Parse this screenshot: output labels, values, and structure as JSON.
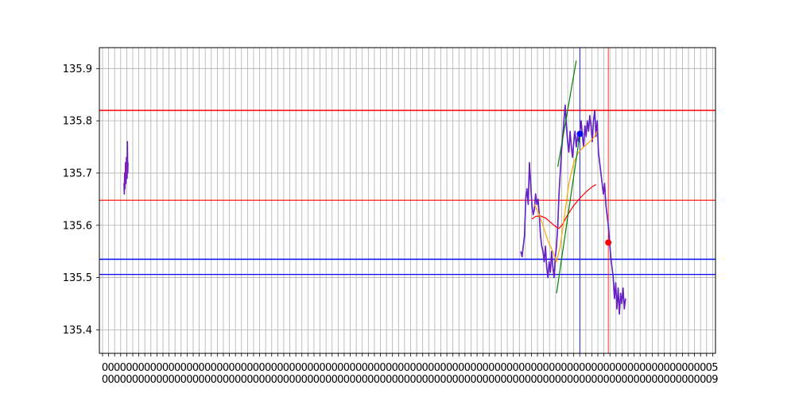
{
  "chart_data": {
    "type": "line",
    "title": "",
    "xlabel": "",
    "ylabel": "",
    "grid": true,
    "legend": "none",
    "xlim": [
      0,
      100
    ],
    "ylim": [
      135.355,
      135.94
    ],
    "yticks": [
      "135.4",
      "135.5",
      "135.6",
      "135.7",
      "135.8",
      "135.9"
    ],
    "ytick_values": [
      135.4,
      135.5,
      135.6,
      135.7,
      135.8,
      135.9
    ],
    "x_tick_count": 102,
    "xtick_row1": "0",
    "xtick_row2": "0",
    "xtick_end_row1": "5",
    "xtick_end_row2": "9",
    "colors": {
      "price": "#8a1ab3",
      "price_wick": "#2222dd",
      "level_red": "#ff0000",
      "level_blue": "#0000ff",
      "trend_green": "#008000",
      "ma_orange": "#ffa500",
      "ma_red": "#ff0000",
      "grid": "#b0b0b0"
    },
    "hlines": [
      {
        "y": 135.82,
        "color": "#ff0000",
        "width": 1.5
      },
      {
        "y": 135.648,
        "color": "#ff0000",
        "width": 1.2
      },
      {
        "y": 135.535,
        "color": "#0000ff",
        "width": 1.5
      },
      {
        "y": 135.506,
        "color": "#0000ff",
        "width": 1.2
      }
    ],
    "vlines": [
      {
        "x": 78.0,
        "color": "#0000ff"
      },
      {
        "x": 82.6,
        "color": "#ff0000"
      }
    ],
    "markers": [
      {
        "x": 78.0,
        "y": 135.775,
        "color": "#0000ff"
      },
      {
        "x": 82.6,
        "y": 135.567,
        "color": "#ff0000"
      }
    ],
    "trendlines": [
      {
        "color": "#008000",
        "points": [
          [
            74.4,
            135.712
          ],
          [
            77.4,
            135.915
          ]
        ]
      },
      {
        "color": "#008000",
        "points": [
          [
            74.2,
            135.47
          ],
          [
            78.0,
            135.775
          ]
        ]
      }
    ],
    "ma_orange": [
      [
        70.6,
        135.64
      ],
      [
        71.4,
        135.62
      ],
      [
        72.0,
        135.6
      ],
      [
        72.8,
        135.57
      ],
      [
        73.6,
        135.55
      ],
      [
        74.2,
        135.53
      ],
      [
        74.8,
        135.56
      ],
      [
        75.4,
        135.61
      ],
      [
        76.2,
        135.68
      ],
      [
        77.0,
        135.72
      ],
      [
        77.8,
        135.74
      ],
      [
        78.6,
        135.75
      ],
      [
        79.6,
        135.76
      ],
      [
        80.4,
        135.77
      ],
      [
        80.8,
        135.78
      ]
    ],
    "ma_red": [
      [
        70.2,
        135.612
      ],
      [
        70.8,
        135.617
      ],
      [
        71.6,
        135.618
      ],
      [
        72.4,
        135.614
      ],
      [
        73.2,
        135.606
      ],
      [
        74.0,
        135.598
      ],
      [
        74.6,
        135.594
      ],
      [
        75.2,
        135.602
      ],
      [
        76.0,
        135.62
      ],
      [
        77.0,
        135.638
      ],
      [
        78.0,
        135.652
      ],
      [
        79.0,
        135.664
      ],
      [
        80.0,
        135.674
      ],
      [
        80.6,
        135.678
      ]
    ],
    "price_series": [
      [
        4.0,
        135.68
      ],
      [
        4.05,
        135.66
      ],
      [
        4.1,
        135.7
      ],
      [
        4.15,
        135.67
      ],
      [
        4.2,
        135.69
      ],
      [
        4.25,
        135.72
      ],
      [
        4.3,
        135.68
      ],
      [
        4.35,
        135.7
      ],
      [
        4.4,
        135.73
      ],
      [
        4.45,
        135.71
      ],
      [
        4.5,
        135.69
      ],
      [
        4.55,
        135.76
      ],
      [
        4.6,
        135.7
      ],
      [
        4.65,
        135.72
      ],
      null,
      [
        68.4,
        135.55
      ],
      [
        68.6,
        135.54
      ],
      [
        68.8,
        135.56
      ],
      [
        69.0,
        135.58
      ],
      [
        69.2,
        135.65
      ],
      [
        69.4,
        135.67
      ],
      [
        69.6,
        135.64
      ],
      [
        69.8,
        135.72
      ],
      [
        70.0,
        135.68
      ],
      [
        70.2,
        135.64
      ],
      [
        70.4,
        135.62
      ],
      [
        70.6,
        135.63
      ],
      [
        70.8,
        135.66
      ],
      [
        71.0,
        135.64
      ],
      [
        71.2,
        135.65
      ],
      [
        71.4,
        135.62
      ],
      [
        71.6,
        135.58
      ],
      [
        71.8,
        135.56
      ],
      [
        72.0,
        135.55
      ],
      [
        72.2,
        135.53
      ],
      [
        72.4,
        135.56
      ],
      [
        72.6,
        135.52
      ],
      [
        72.8,
        135.5
      ],
      [
        73.0,
        135.53
      ],
      [
        73.2,
        135.51
      ],
      [
        73.4,
        135.55
      ],
      [
        73.6,
        135.52
      ],
      [
        73.8,
        135.5
      ],
      [
        74.0,
        135.54
      ],
      [
        74.2,
        135.56
      ],
      [
        74.4,
        135.6
      ],
      [
        74.6,
        135.66
      ],
      [
        74.8,
        135.7
      ],
      [
        75.0,
        135.74
      ],
      [
        75.2,
        135.77
      ],
      [
        75.4,
        135.8
      ],
      [
        75.6,
        135.83
      ],
      [
        75.8,
        135.79
      ],
      [
        76.0,
        135.76
      ],
      [
        76.2,
        135.74
      ],
      [
        76.4,
        135.78
      ],
      [
        76.6,
        135.75
      ],
      [
        76.8,
        135.73
      ],
      [
        77.0,
        135.76
      ],
      [
        77.2,
        135.78
      ],
      [
        77.4,
        135.75
      ],
      [
        77.6,
        135.77
      ],
      [
        77.8,
        135.76
      ],
      [
        78.0,
        135.78
      ],
      [
        78.2,
        135.8
      ],
      [
        78.4,
        135.77
      ],
      [
        78.6,
        135.75
      ],
      [
        78.8,
        135.79
      ],
      [
        79.0,
        135.77
      ],
      [
        79.2,
        135.8
      ],
      [
        79.4,
        135.78
      ],
      [
        79.6,
        135.81
      ],
      [
        79.8,
        135.79
      ],
      [
        80.0,
        135.76
      ],
      [
        80.2,
        135.8
      ],
      [
        80.4,
        135.82
      ],
      [
        80.6,
        135.77
      ],
      [
        80.8,
        135.8
      ],
      [
        81.0,
        135.74
      ],
      [
        81.2,
        135.72
      ],
      [
        81.4,
        135.7
      ],
      [
        81.6,
        135.68
      ],
      [
        81.8,
        135.66
      ],
      [
        82.0,
        135.68
      ],
      [
        82.2,
        135.64
      ],
      [
        82.4,
        135.62
      ],
      [
        82.6,
        135.6
      ],
      [
        82.8,
        135.57
      ],
      [
        83.0,
        135.54
      ],
      [
        83.2,
        135.52
      ],
      [
        83.4,
        135.5
      ],
      [
        83.6,
        135.46
      ],
      [
        83.8,
        135.49
      ],
      [
        84.0,
        135.44
      ],
      [
        84.2,
        135.48
      ],
      [
        84.4,
        135.43
      ],
      [
        84.6,
        135.47
      ],
      [
        84.8,
        135.45
      ],
      [
        85.0,
        135.48
      ],
      [
        85.2,
        135.44
      ],
      [
        85.4,
        135.46
      ]
    ]
  }
}
